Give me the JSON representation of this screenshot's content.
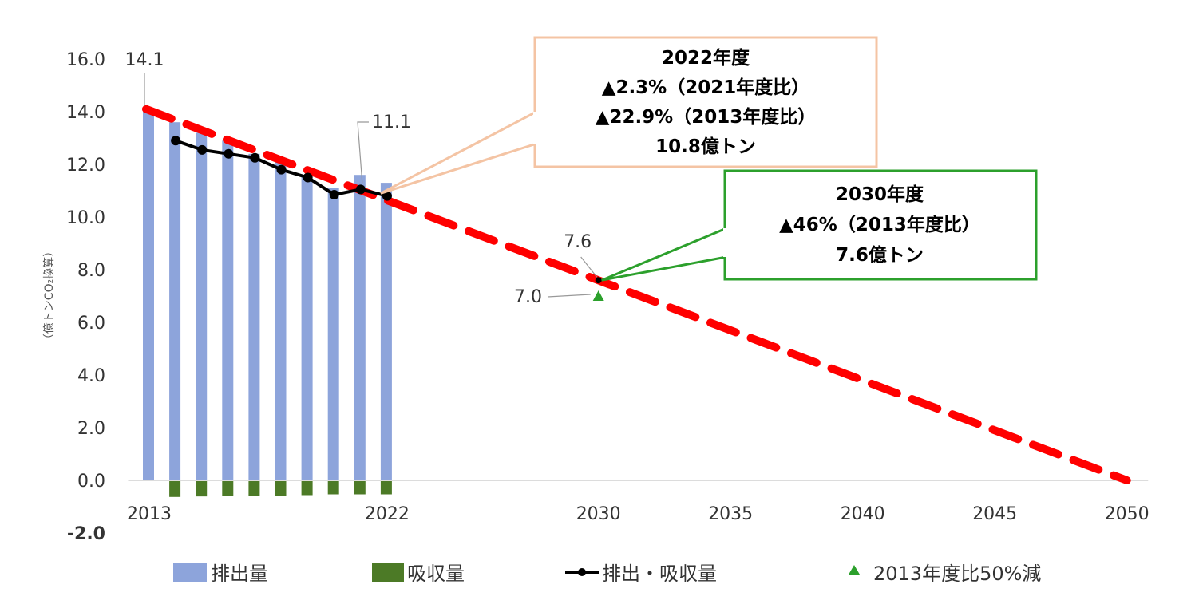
{
  "chart_data": {
    "type": "bar",
    "ylabel": "（億トンCO₂換算）",
    "ylim": [
      -2,
      16
    ],
    "yticks": [
      "16.0",
      "14.0",
      "12.0",
      "10.0",
      "8.0",
      "6.0",
      "4.0",
      "2.0",
      "0.0",
      "-2.0"
    ],
    "xticks": [
      "2013",
      "2022",
      "2030",
      "2035",
      "2040",
      "2045",
      "2050"
    ],
    "x_tick_values": [
      2013,
      2022,
      2030,
      2035,
      2040,
      2045,
      2050
    ],
    "xlim": [
      2012.5,
      2050.5
    ],
    "colors": {
      "emissions": "#8da4db",
      "absorption": "#4c7a26",
      "net": "#000000",
      "path": "#ff0000",
      "target": "#2ca02c",
      "box2022": "#f4c4a4",
      "box2030": "#2ca02c",
      "neg_tick": "#ff0000"
    },
    "series": [
      {
        "name": "排出量",
        "kind": "bar",
        "x": [
          2013,
          2014,
          2015,
          2016,
          2017,
          2018,
          2019,
          2020,
          2021,
          2022
        ],
        "values": [
          14.1,
          13.6,
          13.2,
          12.9,
          12.4,
          12.1,
          11.6,
          11.1,
          11.6,
          11.3
        ]
      },
      {
        "name": "吸収量",
        "kind": "bar",
        "x": [
          2014,
          2015,
          2016,
          2017,
          2018,
          2019,
          2020,
          2021,
          2022
        ],
        "values": [
          -0.6,
          -0.58,
          -0.56,
          -0.56,
          -0.56,
          -0.53,
          -0.5,
          -0.5,
          -0.5
        ]
      },
      {
        "name": "排出・吸収量",
        "kind": "line",
        "x": [
          2014,
          2015,
          2016,
          2017,
          2018,
          2019,
          2020,
          2021,
          2022,
          2030
        ],
        "values": [
          12.9,
          12.55,
          12.4,
          12.25,
          11.8,
          11.5,
          10.85,
          11.05,
          10.8,
          7.6
        ]
      },
      {
        "name": "",
        "kind": "dashed",
        "x": [
          2013,
          2050
        ],
        "values": [
          14.1,
          0.0
        ]
      },
      {
        "name": "2013年度比50%減",
        "kind": "marker",
        "x": [
          2030
        ],
        "values": [
          7.0
        ]
      }
    ],
    "data_labels": [
      "14.1",
      "11.1",
      "7.6",
      "7.0"
    ],
    "annotations": {
      "box2022": [
        "2022年度",
        "▲2.3%（2021年度比）",
        "▲22.9%（2013年度比）",
        "10.8億トン"
      ],
      "box2030": [
        "2030年度",
        "▲46%（2013年度比）",
        "7.6億トン"
      ]
    },
    "legend": {
      "placement": "bottom",
      "items": [
        "排出量",
        "吸収量",
        "排出・吸収量",
        "2013年度比50%減"
      ]
    },
    "grid": false
  }
}
